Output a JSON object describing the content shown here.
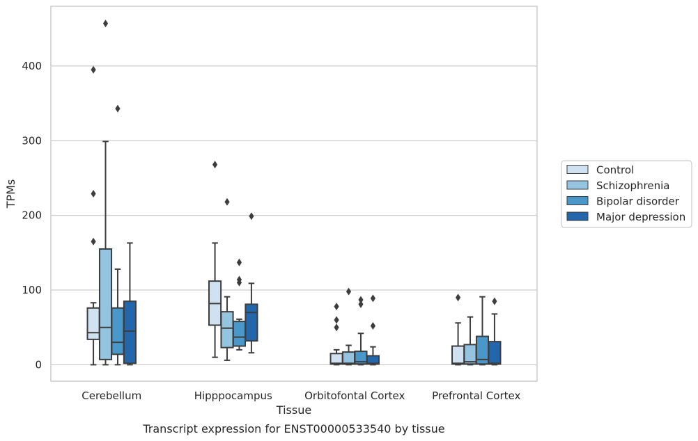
{
  "caption": "Transcript expression for ENST00000533540 by tissue",
  "colors": {
    "Control": "#d0e1f2",
    "Schizophrenia": "#94c4df",
    "Bipolar disorder": "#4a98c9",
    "Major depression": "#2366ac",
    "grid": "#cccccc",
    "edge": "#3d3d3d"
  },
  "chart_data": {
    "type": "boxplot",
    "xlabel": "Tissue",
    "ylabel": "TPMs",
    "ylim": [
      -22,
      480
    ],
    "yticks": [
      0,
      100,
      200,
      300,
      400
    ],
    "grid": "horizontal",
    "legend_placement": "right",
    "categories": [
      "Cerebellum",
      "Hipppocampus",
      "Orbitofontal Cortex",
      "Prefrontal Cortex"
    ],
    "series": [
      {
        "name": "Control",
        "boxes": [
          {
            "whisker_low": 0,
            "q1": 34,
            "median": 43,
            "q3": 76,
            "whisker_high": 83,
            "outliers": [
              165,
              229,
              395
            ]
          },
          {
            "whisker_low": 10,
            "q1": 53,
            "median": 82,
            "q3": 112,
            "whisker_high": 163,
            "outliers": [
              268
            ]
          },
          {
            "whisker_low": 0,
            "q1": 1,
            "median": 2,
            "q3": 15,
            "whisker_high": 20,
            "outliers": [
              50,
              60,
              78
            ]
          },
          {
            "whisker_low": 0,
            "q1": 1,
            "median": 2,
            "q3": 25,
            "whisker_high": 56,
            "outliers": [
              90
            ]
          }
        ]
      },
      {
        "name": "Schizophrenia",
        "boxes": [
          {
            "whisker_low": 0,
            "q1": 7,
            "median": 50,
            "q3": 155,
            "whisker_high": 299,
            "outliers": [
              457
            ]
          },
          {
            "whisker_low": 6,
            "q1": 23,
            "median": 49,
            "q3": 71,
            "whisker_high": 91,
            "outliers": [
              218
            ]
          },
          {
            "whisker_low": 0,
            "q1": 1,
            "median": 2,
            "q3": 17,
            "whisker_high": 26,
            "outliers": [
              98
            ]
          },
          {
            "whisker_low": 0,
            "q1": 1,
            "median": 4,
            "q3": 27,
            "whisker_high": 64,
            "outliers": []
          }
        ]
      },
      {
        "name": "Bipolar disorder",
        "boxes": [
          {
            "whisker_low": 0,
            "q1": 14,
            "median": 30,
            "q3": 76,
            "whisker_high": 128,
            "outliers": [
              343
            ]
          },
          {
            "whisker_low": 20,
            "q1": 25,
            "median": 37,
            "q3": 58,
            "whisker_high": 61,
            "outliers": [
              110,
              114,
              137
            ]
          },
          {
            "whisker_low": 0,
            "q1": 1,
            "median": 4,
            "q3": 18,
            "whisker_high": 42,
            "outliers": [
              81,
              87
            ]
          },
          {
            "whisker_low": 0,
            "q1": 1,
            "median": 7,
            "q3": 38,
            "whisker_high": 91,
            "outliers": []
          }
        ]
      },
      {
        "name": "Major depression",
        "boxes": [
          {
            "whisker_low": 0,
            "q1": 2,
            "median": 45,
            "q3": 85,
            "whisker_high": 163,
            "outliers": []
          },
          {
            "whisker_low": 16,
            "q1": 32,
            "median": 70,
            "q3": 81,
            "whisker_high": 109,
            "outliers": [
              199
            ]
          },
          {
            "whisker_low": 0,
            "q1": 1,
            "median": 2,
            "q3": 12,
            "whisker_high": 24,
            "outliers": [
              52,
              89
            ]
          },
          {
            "whisker_low": 0,
            "q1": 1,
            "median": 2,
            "q3": 31,
            "whisker_high": 68,
            "outliers": [
              85
            ]
          }
        ]
      }
    ]
  }
}
